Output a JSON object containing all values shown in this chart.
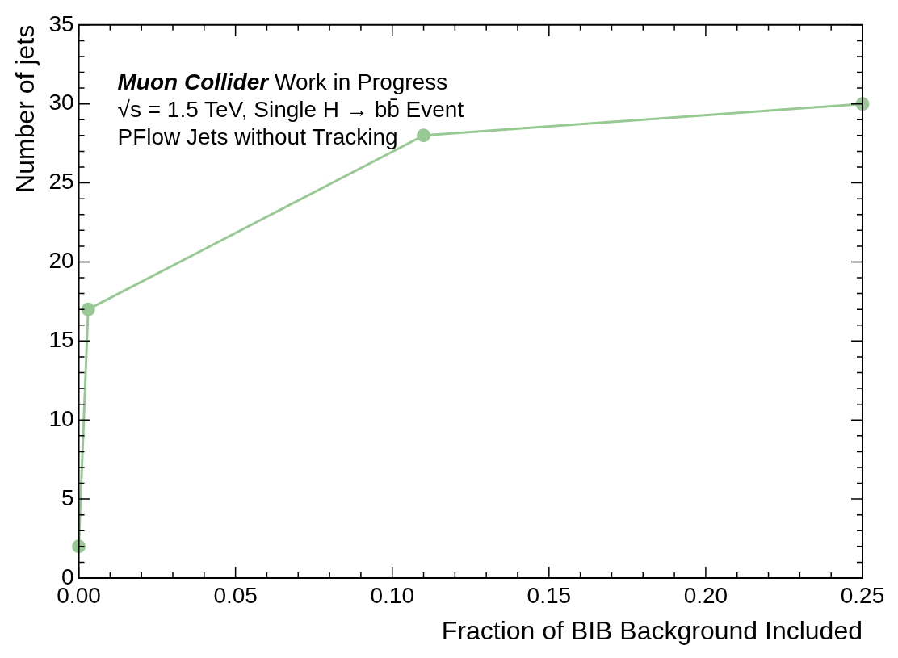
{
  "chart_data": {
    "type": "line",
    "xlabel": "Fraction of BIB Background Included",
    "ylabel": "Number of jets",
    "x": [
      0,
      0.003,
      0.11,
      0.25
    ],
    "series": [
      {
        "color": "#98c994",
        "values": [
          2,
          17,
          28,
          30
        ]
      }
    ],
    "xlim": [
      0,
      0.25
    ],
    "xticks": [
      {
        "value": 0,
        "label": "0.00"
      },
      0.05,
      {
        "value": 0.1,
        "label": "0.10"
      },
      0.15,
      {
        "value": 0.2,
        "label": "0.20"
      },
      0.25
    ],
    "ylim": [
      0,
      35
    ],
    "yticks": [
      0,
      5,
      10,
      15,
      20,
      25,
      30,
      35
    ],
    "marker": "circle",
    "line_style": "solid",
    "grid": false,
    "legend": false,
    "annotations": [
      "Muon Collider",
      "Work in Progress",
      "√s = 1.5 TeV, Single H → bb̄ Event",
      "PFlow Jets without Tracking"
    ]
  }
}
